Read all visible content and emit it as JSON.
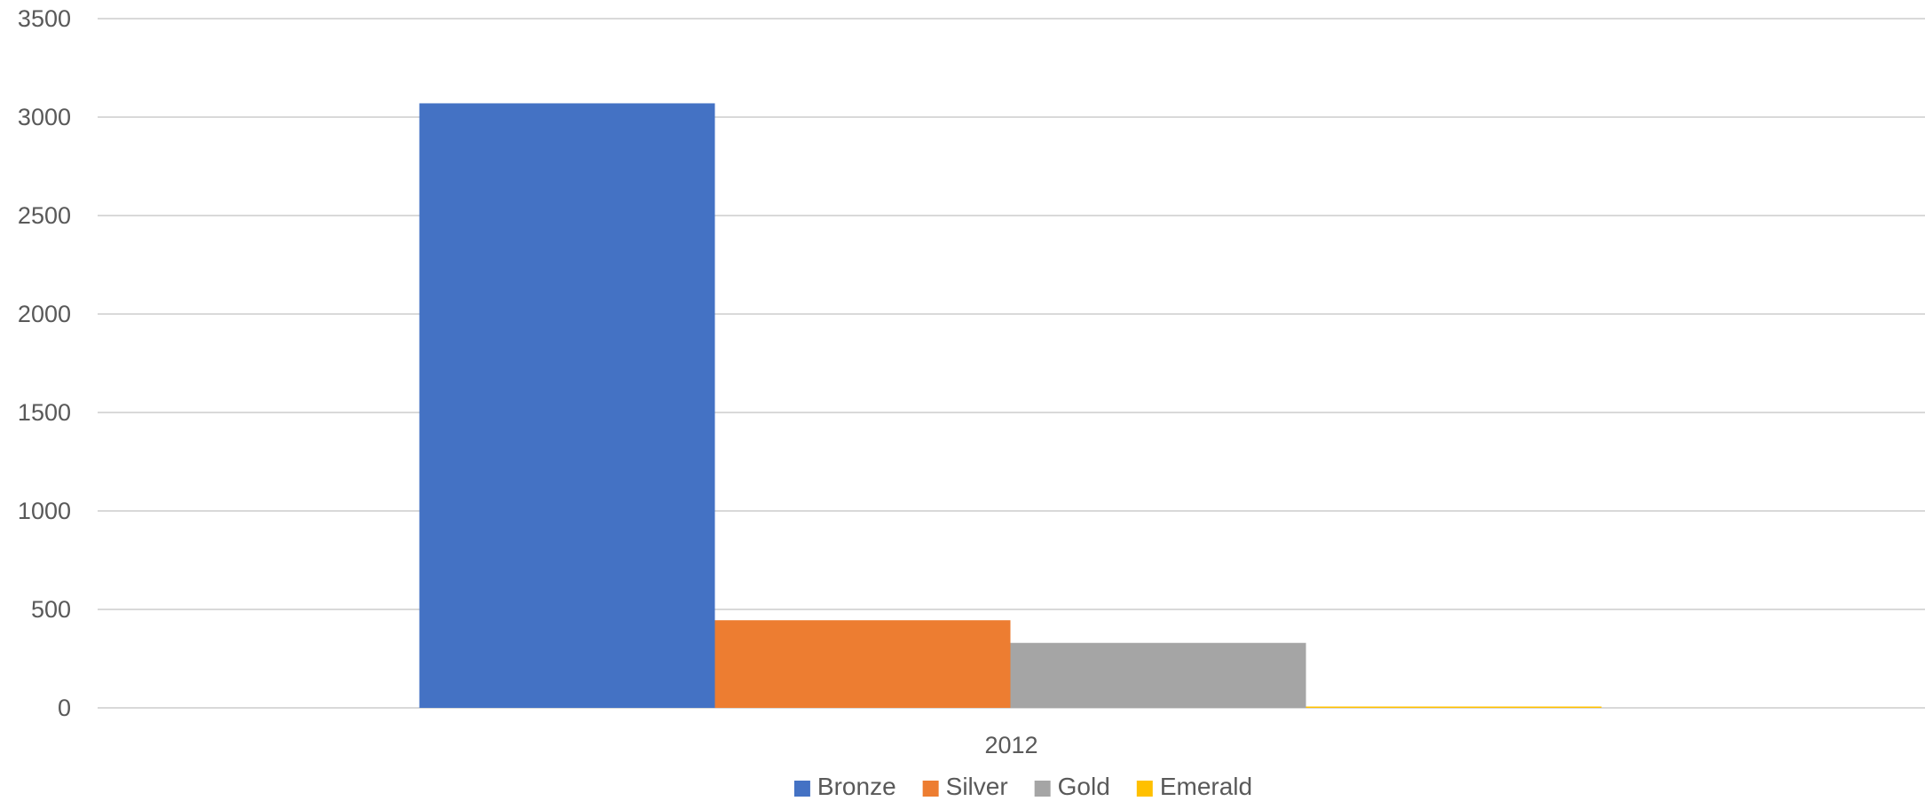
{
  "chart_data": {
    "type": "bar",
    "title": "",
    "xlabel": "",
    "ylabel": "",
    "categories": [
      "2012"
    ],
    "series": [
      {
        "name": "Bronze",
        "values": [
          3070
        ],
        "color": "#4472C4"
      },
      {
        "name": "Silver",
        "values": [
          445
        ],
        "color": "#ED7D31"
      },
      {
        "name": "Gold",
        "values": [
          330
        ],
        "color": "#A5A5A5"
      },
      {
        "name": "Emerald",
        "values": [
          6
        ],
        "color": "#FFC000"
      }
    ],
    "ylim": [
      0,
      3500
    ],
    "yticks": [
      0,
      500,
      1000,
      1500,
      2000,
      2500,
      3000,
      3500
    ],
    "grid": true,
    "legend_position": "bottom"
  },
  "colors": {
    "gridline": "#D9D9D9",
    "text": "#595959",
    "background": "#FFFFFF"
  }
}
